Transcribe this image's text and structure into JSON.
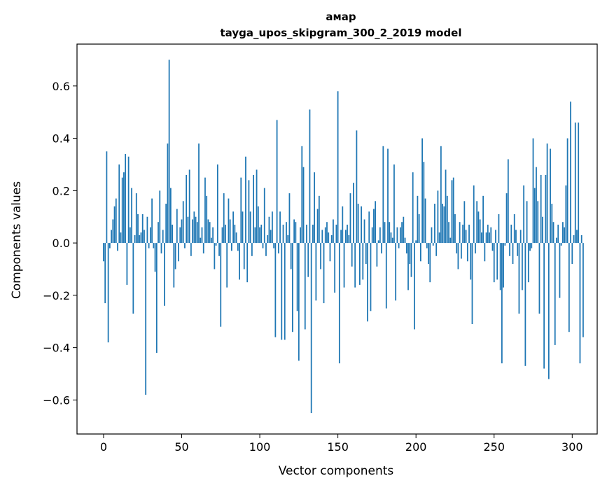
{
  "chart_data": {
    "type": "bar",
    "title": "амар",
    "subtitle": "tayga_upos_skipgram_300_2_2019 model",
    "xlabel": "Vector components",
    "ylabel": "Components values",
    "xlim": [
      -17,
      316
    ],
    "ylim": [
      -0.73,
      0.76
    ],
    "xticks": [
      0,
      50,
      100,
      150,
      200,
      250,
      300
    ],
    "xtick_labels": [
      "0",
      "50",
      "100",
      "150",
      "200",
      "250",
      "300"
    ],
    "yticks": [
      -0.6,
      -0.4,
      -0.2,
      0.0,
      0.2,
      0.4,
      0.6
    ],
    "ytick_labels": [
      "−0.6",
      "−0.4",
      "−0.2",
      "0.0",
      "0.2",
      "0.4",
      "0.6"
    ],
    "grid": false,
    "bar_color": "#1f77b4",
    "values": [
      -0.07,
      -0.23,
      0.35,
      -0.38,
      -0.02,
      0.05,
      0.09,
      0.14,
      0.17,
      -0.03,
      0.3,
      0.04,
      0.25,
      0.27,
      0.34,
      -0.16,
      0.33,
      0.06,
      0.21,
      -0.27,
      0.03,
      0.19,
      0.11,
      0.03,
      0.04,
      0.11,
      0.05,
      -0.58,
      0.1,
      -0.02,
      0.06,
      0.17,
      -0.02,
      -0.11,
      -0.42,
      0.08,
      0.2,
      -0.04,
      0.05,
      -0.24,
      0.15,
      0.38,
      0.7,
      0.21,
      0.07,
      -0.17,
      -0.1,
      0.13,
      -0.07,
      0.06,
      0.09,
      0.16,
      -0.02,
      0.26,
      0.1,
      0.28,
      -0.05,
      0.09,
      0.12,
      0.1,
      0.08,
      0.38,
      0.02,
      0.06,
      -0.04,
      0.25,
      0.18,
      0.09,
      0.08,
      0.02,
      0.06,
      -0.1,
      -0.01,
      0.3,
      -0.05,
      -0.32,
      0.06,
      0.19,
      0.07,
      -0.17,
      0.17,
      0.09,
      -0.03,
      0.12,
      0.07,
      0.04,
      -0.03,
      -0.14,
      0.25,
      0.12,
      -0.1,
      0.33,
      -0.15,
      0.24,
      0.12,
      -0.05,
      0.26,
      0.06,
      0.28,
      0.14,
      0.06,
      0.07,
      -0.02,
      0.21,
      -0.05,
      0.03,
      0.1,
      0.05,
      0.12,
      -0.02,
      -0.36,
      0.47,
      -0.04,
      0.12,
      -0.37,
      0.07,
      -0.37,
      0.08,
      0.03,
      0.19,
      -0.1,
      -0.34,
      0.09,
      0.08,
      -0.26,
      -0.45,
      0.06,
      0.37,
      0.29,
      -0.33,
      0.07,
      -0.13,
      0.51,
      -0.65,
      0.07,
      0.27,
      -0.22,
      0.13,
      0.18,
      -0.1,
      0.05,
      -0.23,
      0.06,
      0.08,
      0.04,
      -0.07,
      0.03,
      0.09,
      -0.19,
      0.07,
      0.58,
      -0.46,
      0.05,
      0.14,
      -0.17,
      0.05,
      0.07,
      0.03,
      0.19,
      -0.09,
      0.23,
      -0.17,
      0.43,
      0.15,
      -0.16,
      0.14,
      -0.14,
      0.09,
      -0.08,
      -0.3,
      0.12,
      -0.26,
      0.06,
      0.13,
      0.16,
      -0.09,
      0.01,
      0.06,
      -0.04,
      0.37,
      0.08,
      -0.25,
      0.36,
      0.08,
      0.04,
      0.02,
      0.3,
      -0.22,
      0.06,
      -0.02,
      0.06,
      0.08,
      0.1,
      0.02,
      -0.04,
      -0.18,
      -0.08,
      -0.13,
      0.27,
      -0.33,
      0.01,
      0.18,
      0.11,
      -0.07,
      0.4,
      0.31,
      0.17,
      -0.02,
      -0.08,
      -0.15,
      0.06,
      -0.01,
      0.15,
      -0.05,
      0.2,
      0.04,
      0.37,
      0.15,
      0.14,
      0.28,
      0.18,
      0.08,
      0.02,
      0.24,
      0.25,
      0.11,
      -0.04,
      -0.1,
      0.08,
      -0.06,
      0.07,
      0.16,
      0.05,
      -0.07,
      0.07,
      -0.14,
      -0.31,
      0.22,
      -0.04,
      0.16,
      0.12,
      0.09,
      0.04,
      0.18,
      -0.07,
      0.04,
      0.07,
      0.04,
      0.06,
      -0.03,
      -0.15,
      0.05,
      -0.14,
      0.11,
      -0.18,
      -0.46,
      -0.17,
      -0.01,
      0.19,
      0.32,
      -0.05,
      0.07,
      -0.08,
      0.11,
      0.05,
      -0.05,
      -0.27,
      0.05,
      -0.18,
      0.22,
      -0.47,
      0.16,
      -0.15,
      -0.03,
      -0.02,
      0.4,
      0.21,
      0.29,
      0.16,
      -0.27,
      0.26,
      0.1,
      -0.48,
      0.26,
      0.38,
      -0.52,
      0.36,
      0.15,
      0.08,
      -0.39,
      0.02,
      0.07,
      -0.21,
      -0.01,
      0.08,
      0.06,
      0.22,
      0.4,
      -0.34,
      0.54,
      -0.08,
      0.03,
      0.46,
      0.05,
      0.46,
      -0.46,
      0.03,
      -0.36
    ]
  }
}
